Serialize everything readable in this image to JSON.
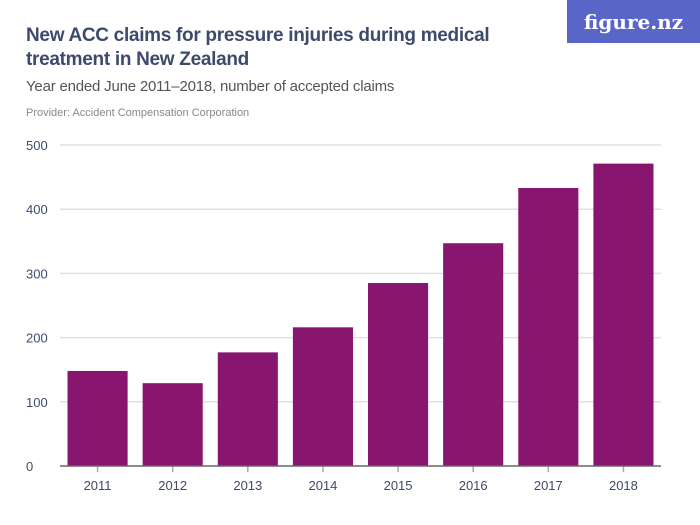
{
  "logo": "figure.nz",
  "chart_data": {
    "type": "bar",
    "title": "New ACC claims for pressure injuries during medical treatment in New Zealand",
    "subtitle": "Year ended June 2011–2018, number of accepted claims",
    "provider": "Provider: Accident Compensation Corporation",
    "categories": [
      "2011",
      "2012",
      "2013",
      "2014",
      "2015",
      "2016",
      "2017",
      "2018"
    ],
    "values": [
      148,
      129,
      177,
      216,
      285,
      347,
      433,
      471
    ],
    "ylim": [
      0,
      500
    ],
    "yticks": [
      0,
      100,
      200,
      300,
      400,
      500
    ],
    "grid": true,
    "color": "#88166e"
  }
}
